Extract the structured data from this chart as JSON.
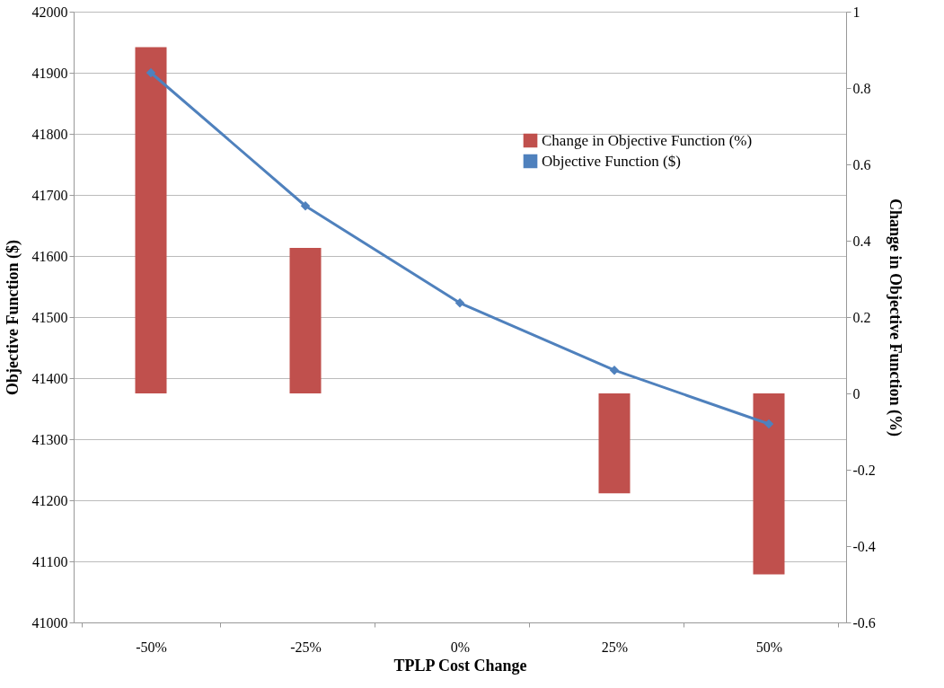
{
  "chart_data": {
    "type": "bar",
    "xlabel": "TPLP Cost Change",
    "ylabel": "Objective Function ($)",
    "y2label": "Change in Objective Function (%)",
    "categories": [
      "-50%",
      "-25%",
      "0%",
      "25%",
      "50%"
    ],
    "series": [
      {
        "name": "Change in Objective Function (%)",
        "axis": "y2",
        "color": "#c0504d",
        "values": [
          0.907,
          0.381,
          0,
          -0.262,
          -0.474
        ]
      },
      {
        "name": "Objective Function ($)",
        "type": "line",
        "color": "#4f81bd",
        "values": [
          41900,
          41682,
          41523,
          41413,
          41325
        ]
      }
    ],
    "ylim": [
      41000,
      42000
    ],
    "yticks": [
      41000,
      41100,
      41200,
      41300,
      41400,
      41500,
      41600,
      41700,
      41800,
      41900,
      42000
    ],
    "y2lim": [
      -0.6,
      1
    ],
    "y2ticks": [
      -0.6,
      -0.4,
      -0.2,
      0,
      0.2,
      0.4,
      0.6,
      0.8,
      1
    ],
    "grid": "y",
    "legend": "top right",
    "marker": "diamond",
    "line_style": "solid"
  }
}
